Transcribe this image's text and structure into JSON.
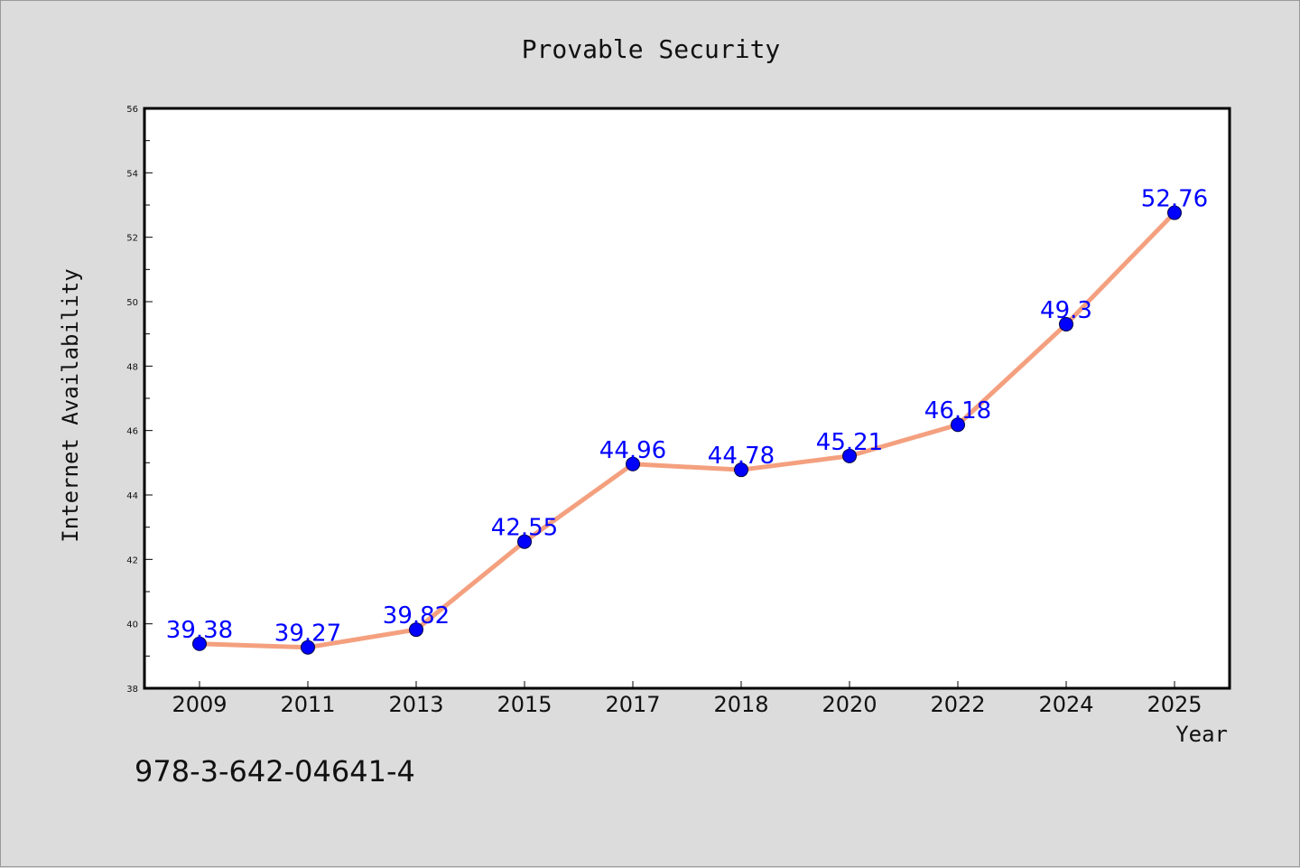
{
  "figure": {
    "isbn": "978-3-642-04641-4"
  },
  "chart_data": {
    "type": "line",
    "title": "Provable Security",
    "xlabel": "Year",
    "ylabel": "Internet Availability",
    "categories": [
      "2009",
      "2011",
      "2013",
      "2015",
      "2017",
      "2018",
      "2020",
      "2022",
      "2024",
      "2025"
    ],
    "series": [
      {
        "values": [
          39.38,
          39.27,
          39.82,
          42.55,
          44.96,
          44.78,
          45.21,
          46.18,
          49.3,
          52.76
        ],
        "labels": [
          "39.38",
          "39.27",
          "39.82",
          "42.55",
          "44.96",
          "44.78",
          "45.21",
          "46.18",
          "49.3",
          "52.76"
        ]
      }
    ],
    "ylim": [
      38,
      56
    ],
    "yticks": [
      "38",
      "40",
      "42",
      "44",
      "46",
      "48",
      "50",
      "52",
      "54",
      "56"
    ],
    "grid": false,
    "colors": {
      "line": "#f4a07f",
      "marker": "#0000ff",
      "data_label": "#0000ff",
      "background": "#dcdcdc",
      "plot_area": "#ffffff"
    }
  }
}
